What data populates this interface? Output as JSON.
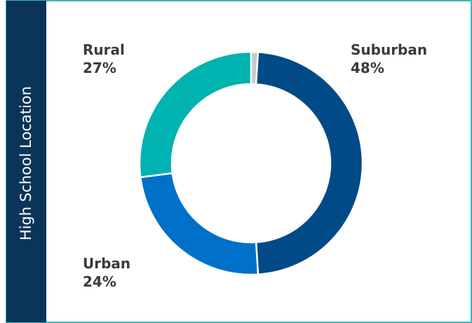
{
  "chart_data": {
    "type": "donut",
    "title": "High School Location",
    "categories": [
      null,
      "Suburban",
      "Urban",
      "Rural"
    ],
    "values": [
      1,
      48,
      24,
      27
    ],
    "value_labels": [
      null,
      "48%",
      "24%",
      "27%"
    ],
    "colors": [
      "#c9c9c9",
      "#004a87",
      "#0070c9",
      "#00b2b0"
    ]
  }
}
